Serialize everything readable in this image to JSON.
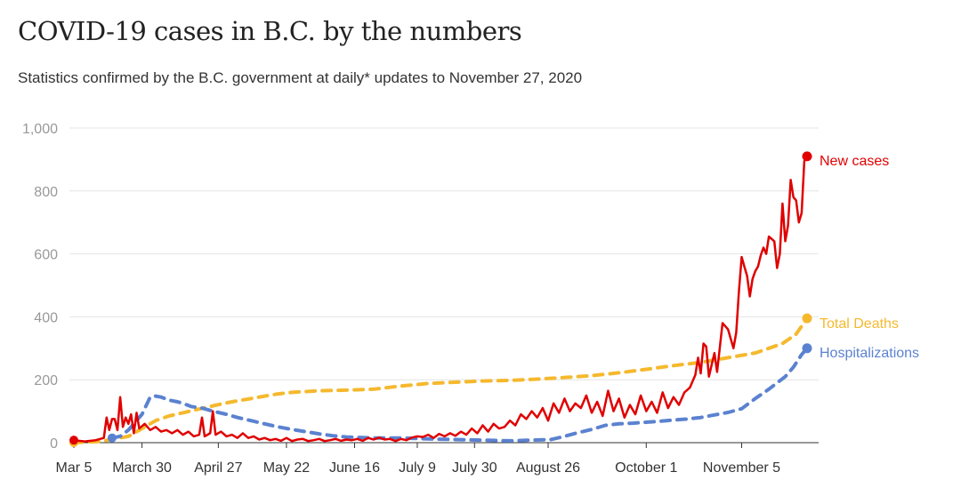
{
  "header": {
    "title": "COVID-19 cases in B.C. by the numbers",
    "subtitle": "Statistics confirmed by the B.C. government at daily* updates to November 27, 2020"
  },
  "chart_data": {
    "type": "line",
    "ylim": [
      0,
      1000
    ],
    "y_ticks": [
      0,
      200,
      400,
      600,
      800,
      "1,000"
    ],
    "x_range": [
      "2020-03-05",
      "2020-11-27"
    ],
    "x_ticks": [
      {
        "label": "Mar 5",
        "day": 0
      },
      {
        "label": "March 30",
        "day": 25
      },
      {
        "label": "April 27",
        "day": 53
      },
      {
        "label": "May 22",
        "day": 78
      },
      {
        "label": "June 16",
        "day": 103
      },
      {
        "label": "July 9",
        "day": 126
      },
      {
        "label": "July 30",
        "day": 147
      },
      {
        "label": "August 26",
        "day": 174
      },
      {
        "label": "October 1",
        "day": 210
      },
      {
        "label": "November 5",
        "day": 245
      }
    ],
    "grid": true,
    "series": [
      {
        "name": "New cases",
        "color": "#e00000",
        "style": "solid",
        "points": [
          [
            0,
            8
          ],
          [
            4,
            4
          ],
          [
            8,
            8
          ],
          [
            11,
            15
          ],
          [
            12,
            80
          ],
          [
            13,
            40
          ],
          [
            14,
            75
          ],
          [
            15,
            75
          ],
          [
            16,
            40
          ],
          [
            17,
            145
          ],
          [
            18,
            50
          ],
          [
            19,
            80
          ],
          [
            20,
            60
          ],
          [
            21,
            90
          ],
          [
            22,
            30
          ],
          [
            23,
            95
          ],
          [
            24,
            45
          ],
          [
            26,
            60
          ],
          [
            28,
            40
          ],
          [
            30,
            50
          ],
          [
            32,
            35
          ],
          [
            34,
            40
          ],
          [
            36,
            30
          ],
          [
            38,
            40
          ],
          [
            40,
            25
          ],
          [
            42,
            35
          ],
          [
            44,
            20
          ],
          [
            46,
            25
          ],
          [
            47,
            80
          ],
          [
            48,
            20
          ],
          [
            50,
            30
          ],
          [
            51,
            100
          ],
          [
            52,
            25
          ],
          [
            54,
            35
          ],
          [
            56,
            20
          ],
          [
            58,
            25
          ],
          [
            60,
            15
          ],
          [
            62,
            30
          ],
          [
            64,
            15
          ],
          [
            66,
            20
          ],
          [
            68,
            10
          ],
          [
            70,
            15
          ],
          [
            72,
            8
          ],
          [
            74,
            12
          ],
          [
            76,
            6
          ],
          [
            78,
            15
          ],
          [
            80,
            5
          ],
          [
            82,
            10
          ],
          [
            84,
            12
          ],
          [
            86,
            5
          ],
          [
            88,
            8
          ],
          [
            90,
            12
          ],
          [
            92,
            5
          ],
          [
            94,
            8
          ],
          [
            96,
            12
          ],
          [
            98,
            6
          ],
          [
            100,
            10
          ],
          [
            102,
            8
          ],
          [
            104,
            12
          ],
          [
            106,
            6
          ],
          [
            108,
            15
          ],
          [
            110,
            10
          ],
          [
            112,
            16
          ],
          [
            114,
            10
          ],
          [
            116,
            12
          ],
          [
            118,
            5
          ],
          [
            120,
            12
          ],
          [
            122,
            8
          ],
          [
            124,
            16
          ],
          [
            126,
            20
          ],
          [
            128,
            18
          ],
          [
            130,
            25
          ],
          [
            132,
            15
          ],
          [
            134,
            28
          ],
          [
            136,
            20
          ],
          [
            138,
            30
          ],
          [
            140,
            22
          ],
          [
            142,
            35
          ],
          [
            144,
            25
          ],
          [
            146,
            45
          ],
          [
            148,
            30
          ],
          [
            150,
            55
          ],
          [
            152,
            35
          ],
          [
            154,
            60
          ],
          [
            156,
            45
          ],
          [
            158,
            50
          ],
          [
            160,
            70
          ],
          [
            162,
            55
          ],
          [
            164,
            90
          ],
          [
            166,
            75
          ],
          [
            168,
            100
          ],
          [
            170,
            80
          ],
          [
            172,
            110
          ],
          [
            174,
            70
          ],
          [
            176,
            125
          ],
          [
            178,
            95
          ],
          [
            180,
            140
          ],
          [
            182,
            100
          ],
          [
            184,
            125
          ],
          [
            186,
            110
          ],
          [
            188,
            150
          ],
          [
            190,
            95
          ],
          [
            192,
            130
          ],
          [
            194,
            85
          ],
          [
            196,
            165
          ],
          [
            198,
            100
          ],
          [
            200,
            140
          ],
          [
            202,
            80
          ],
          [
            204,
            120
          ],
          [
            206,
            90
          ],
          [
            208,
            150
          ],
          [
            210,
            100
          ],
          [
            212,
            130
          ],
          [
            214,
            95
          ],
          [
            216,
            160
          ],
          [
            218,
            110
          ],
          [
            220,
            145
          ],
          [
            222,
            120
          ],
          [
            224,
            160
          ],
          [
            226,
            175
          ],
          [
            228,
            215
          ],
          [
            229,
            270
          ],
          [
            230,
            220
          ],
          [
            231,
            315
          ],
          [
            232,
            305
          ],
          [
            233,
            210
          ],
          [
            235,
            285
          ],
          [
            236,
            225
          ],
          [
            238,
            380
          ],
          [
            240,
            360
          ],
          [
            242,
            300
          ],
          [
            243,
            350
          ],
          [
            244,
            480
          ],
          [
            245,
            590
          ],
          [
            246,
            560
          ],
          [
            247,
            530
          ],
          [
            248,
            465
          ],
          [
            249,
            520
          ],
          [
            250,
            545
          ],
          [
            251,
            560
          ],
          [
            252,
            595
          ],
          [
            253,
            620
          ],
          [
            254,
            600
          ],
          [
            255,
            655
          ],
          [
            257,
            640
          ],
          [
            258,
            555
          ],
          [
            259,
            600
          ],
          [
            260,
            760
          ],
          [
            261,
            640
          ],
          [
            262,
            690
          ],
          [
            263,
            835
          ],
          [
            264,
            780
          ],
          [
            265,
            770
          ],
          [
            266,
            700
          ],
          [
            267,
            730
          ],
          [
            268,
            895
          ],
          [
            269,
            910
          ]
        ]
      },
      {
        "name": "Total Deaths",
        "color": "#f5b92e",
        "style": "dashed",
        "points": [
          [
            0,
            0
          ],
          [
            10,
            4
          ],
          [
            20,
            20
          ],
          [
            25,
            45
          ],
          [
            30,
            70
          ],
          [
            35,
            85
          ],
          [
            40,
            95
          ],
          [
            45,
            105
          ],
          [
            50,
            115
          ],
          [
            55,
            125
          ],
          [
            60,
            133
          ],
          [
            65,
            140
          ],
          [
            70,
            148
          ],
          [
            75,
            155
          ],
          [
            80,
            160
          ],
          [
            90,
            165
          ],
          [
            100,
            167
          ],
          [
            110,
            170
          ],
          [
            120,
            180
          ],
          [
            130,
            188
          ],
          [
            140,
            192
          ],
          [
            150,
            196
          ],
          [
            160,
            198
          ],
          [
            170,
            202
          ],
          [
            180,
            207
          ],
          [
            190,
            213
          ],
          [
            200,
            222
          ],
          [
            210,
            233
          ],
          [
            220,
            245
          ],
          [
            230,
            255
          ],
          [
            240,
            270
          ],
          [
            250,
            285
          ],
          [
            255,
            300
          ],
          [
            260,
            315
          ],
          [
            265,
            345
          ],
          [
            269,
            395
          ]
        ]
      },
      {
        "name": "Hospitalizations",
        "color": "#5b82d0",
        "style": "dashed",
        "points": [
          [
            14,
            15
          ],
          [
            17,
            20
          ],
          [
            20,
            40
          ],
          [
            25,
            90
          ],
          [
            28,
            145
          ],
          [
            30,
            148
          ],
          [
            32,
            145
          ],
          [
            35,
            135
          ],
          [
            38,
            130
          ],
          [
            40,
            125
          ],
          [
            43,
            115
          ],
          [
            47,
            110
          ],
          [
            51,
            100
          ],
          [
            56,
            90
          ],
          [
            60,
            80
          ],
          [
            65,
            70
          ],
          [
            70,
            60
          ],
          [
            75,
            50
          ],
          [
            80,
            42
          ],
          [
            85,
            35
          ],
          [
            90,
            28
          ],
          [
            95,
            22
          ],
          [
            100,
            18
          ],
          [
            110,
            15
          ],
          [
            120,
            15
          ],
          [
            130,
            12
          ],
          [
            140,
            10
          ],
          [
            150,
            8
          ],
          [
            160,
            6
          ],
          [
            167,
            8
          ],
          [
            175,
            10
          ],
          [
            180,
            20
          ],
          [
            185,
            32
          ],
          [
            190,
            42
          ],
          [
            195,
            55
          ],
          [
            200,
            60
          ],
          [
            205,
            62
          ],
          [
            210,
            65
          ],
          [
            215,
            68
          ],
          [
            220,
            72
          ],
          [
            225,
            75
          ],
          [
            230,
            80
          ],
          [
            235,
            88
          ],
          [
            240,
            96
          ],
          [
            245,
            108
          ],
          [
            250,
            140
          ],
          [
            255,
            170
          ],
          [
            258,
            190
          ],
          [
            261,
            210
          ],
          [
            264,
            240
          ],
          [
            267,
            280
          ],
          [
            269,
            300
          ]
        ]
      }
    ]
  }
}
